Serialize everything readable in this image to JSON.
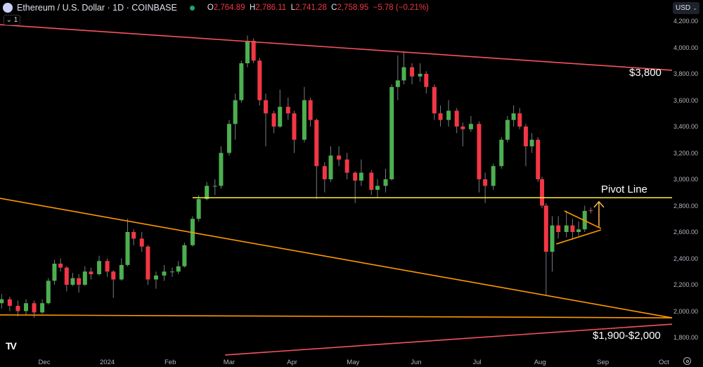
{
  "header": {
    "title": "Ethereum / U.S. Dollar · 1D · COINBASE",
    "open_label": "O",
    "open": "2,764.89",
    "high_label": "H",
    "high": "2,786.11",
    "low_label": "L",
    "low": "2,741.28",
    "close_label": "C",
    "close": "2,758.95",
    "change": "−5.78 (−0.21%)",
    "collapse_label": "1",
    "currency": "USD"
  },
  "colors": {
    "up": "#4caf50",
    "down": "#f23645",
    "wick": "#787b86",
    "resistance": "#f7525f",
    "pivot": "#ffeb3b",
    "support": "#ff9800",
    "arrow": "#ffb74d",
    "background": "#000000"
  },
  "icons": {
    "logo": "ethereum-icon",
    "status": "market-open-dot",
    "settings": "gear-icon",
    "collapse": "chevron-down-icon",
    "brand": "tradingview-logo"
  },
  "chart_data": {
    "type": "candlestick",
    "ylim": [
      1760,
      4240
    ],
    "xlim": [
      "2023-11-09",
      "2024-10-10"
    ],
    "price_ticks": [
      "4,200.00",
      "4,000.00",
      "3,800.00",
      "3,600.00",
      "3,400.00",
      "3,200.00",
      "3,000.00",
      "2,800.00",
      "2,600.00",
      "2,400.00",
      "2,200.00",
      "2,000.00",
      "1,800.00"
    ],
    "time_ticks": [
      {
        "label": "Dec",
        "date": "2023-12-01"
      },
      {
        "label": "2024",
        "date": "2024-01-01"
      },
      {
        "label": "Feb",
        "date": "2024-02-01"
      },
      {
        "label": "Mar",
        "date": "2024-03-01"
      },
      {
        "label": "Apr",
        "date": "2024-04-01"
      },
      {
        "label": "May",
        "date": "2024-05-01"
      },
      {
        "label": "Jun",
        "date": "2024-06-01"
      },
      {
        "label": "Jul",
        "date": "2024-07-01"
      },
      {
        "label": "Aug",
        "date": "2024-08-01"
      },
      {
        "label": "Sep",
        "date": "2024-09-01"
      },
      {
        "label": "Oct",
        "date": "2024-10-01"
      }
    ],
    "candles": [
      [
        "2023-11-10",
        2060,
        2130,
        2020,
        2090
      ],
      [
        "2023-11-14",
        2090,
        2110,
        2000,
        2040
      ],
      [
        "2023-11-18",
        2040,
        2080,
        1960,
        2000
      ],
      [
        "2023-11-22",
        2000,
        2090,
        1970,
        2060
      ],
      [
        "2023-11-26",
        2060,
        2080,
        1950,
        1990
      ],
      [
        "2023-11-30",
        1990,
        2090,
        1980,
        2060
      ],
      [
        "2023-12-03",
        2060,
        2250,
        2050,
        2230
      ],
      [
        "2023-12-06",
        2230,
        2390,
        2200,
        2360
      ],
      [
        "2023-12-09",
        2360,
        2400,
        2300,
        2330
      ],
      [
        "2023-12-12",
        2330,
        2340,
        2150,
        2200
      ],
      [
        "2023-12-15",
        2200,
        2290,
        2190,
        2250
      ],
      [
        "2023-12-18",
        2250,
        2280,
        2140,
        2200
      ],
      [
        "2023-12-21",
        2200,
        2340,
        2190,
        2300
      ],
      [
        "2023-12-24",
        2300,
        2330,
        2240,
        2280
      ],
      [
        "2023-12-28",
        2280,
        2420,
        2270,
        2380
      ],
      [
        "2024-01-01",
        2380,
        2400,
        2260,
        2300
      ],
      [
        "2024-01-04",
        2300,
        2310,
        2100,
        2240
      ],
      [
        "2024-01-08",
        2240,
        2400,
        2230,
        2350
      ],
      [
        "2024-01-11",
        2350,
        2700,
        2340,
        2600
      ],
      [
        "2024-01-14",
        2600,
        2620,
        2500,
        2550
      ],
      [
        "2024-01-18",
        2550,
        2600,
        2450,
        2490
      ],
      [
        "2024-01-21",
        2490,
        2500,
        2200,
        2240
      ],
      [
        "2024-01-25",
        2240,
        2300,
        2170,
        2270
      ],
      [
        "2024-01-29",
        2270,
        2350,
        2230,
        2300
      ],
      [
        "2024-02-02",
        2300,
        2330,
        2260,
        2300
      ],
      [
        "2024-02-05",
        2300,
        2380,
        2280,
        2340
      ],
      [
        "2024-02-08",
        2340,
        2520,
        2330,
        2500
      ],
      [
        "2024-02-12",
        2500,
        2720,
        2490,
        2700
      ],
      [
        "2024-02-15",
        2700,
        2880,
        2680,
        2850
      ],
      [
        "2024-02-19",
        2850,
        2980,
        2840,
        2950
      ],
      [
        "2024-02-23",
        2950,
        3000,
        2880,
        2950
      ],
      [
        "2024-02-26",
        2950,
        3250,
        2930,
        3200
      ],
      [
        "2024-03-01",
        3200,
        3450,
        3180,
        3420
      ],
      [
        "2024-03-04",
        3420,
        3650,
        3300,
        3600
      ],
      [
        "2024-03-07",
        3600,
        3900,
        3580,
        3880
      ],
      [
        "2024-03-10",
        3880,
        4090,
        3850,
        4050
      ],
      [
        "2024-03-13",
        4050,
        4070,
        3880,
        3900
      ],
      [
        "2024-03-16",
        3900,
        3920,
        3560,
        3600
      ],
      [
        "2024-03-19",
        3600,
        3650,
        3250,
        3500
      ],
      [
        "2024-03-23",
        3500,
        3520,
        3350,
        3400
      ],
      [
        "2024-03-26",
        3400,
        3680,
        3390,
        3550
      ],
      [
        "2024-03-30",
        3550,
        3620,
        3450,
        3500
      ],
      [
        "2024-04-02",
        3500,
        3520,
        3200,
        3300
      ],
      [
        "2024-04-07",
        3300,
        3700,
        3280,
        3600
      ],
      [
        "2024-04-10",
        3600,
        3620,
        3400,
        3450
      ],
      [
        "2024-04-13",
        3450,
        3460,
        2850,
        3100
      ],
      [
        "2024-04-17",
        3100,
        3130,
        2900,
        3000
      ],
      [
        "2024-04-20",
        3000,
        3250,
        2980,
        3180
      ],
      [
        "2024-04-24",
        3180,
        3250,
        3100,
        3150
      ],
      [
        "2024-04-28",
        3150,
        3200,
        3000,
        3050
      ],
      [
        "2024-05-02",
        3050,
        3060,
        2820,
        2990
      ],
      [
        "2024-05-05",
        2990,
        3150,
        2950,
        3050
      ],
      [
        "2024-05-10",
        3050,
        3070,
        2880,
        2920
      ],
      [
        "2024-05-13",
        2920,
        3000,
        2860,
        2950
      ],
      [
        "2024-05-17",
        2950,
        3080,
        2900,
        3000
      ],
      [
        "2024-05-20",
        3000,
        3720,
        2990,
        3700
      ],
      [
        "2024-05-23",
        3700,
        3940,
        3600,
        3750
      ],
      [
        "2024-05-26",
        3750,
        3970,
        3720,
        3850
      ],
      [
        "2024-05-30",
        3850,
        3880,
        3720,
        3780
      ],
      [
        "2024-06-03",
        3780,
        3880,
        3740,
        3800
      ],
      [
        "2024-06-06",
        3800,
        3820,
        3650,
        3700
      ],
      [
        "2024-06-10",
        3700,
        3720,
        3450,
        3500
      ],
      [
        "2024-06-13",
        3500,
        3560,
        3400,
        3450
      ],
      [
        "2024-06-17",
        3450,
        3600,
        3400,
        3520
      ],
      [
        "2024-06-21",
        3520,
        3540,
        3350,
        3400
      ],
      [
        "2024-06-24",
        3400,
        3430,
        3250,
        3380
      ],
      [
        "2024-06-28",
        3380,
        3480,
        3360,
        3420
      ],
      [
        "2024-07-02",
        3420,
        3440,
        2900,
        3000
      ],
      [
        "2024-07-05",
        3000,
        3050,
        2820,
        2950
      ],
      [
        "2024-07-09",
        2950,
        3120,
        2920,
        3100
      ],
      [
        "2024-07-13",
        3100,
        3320,
        3080,
        3300
      ],
      [
        "2024-07-16",
        3300,
        3480,
        3280,
        3450
      ],
      [
        "2024-07-19",
        3450,
        3560,
        3400,
        3500
      ],
      [
        "2024-07-22",
        3500,
        3540,
        3380,
        3400
      ],
      [
        "2024-07-25",
        3400,
        3420,
        3100,
        3250
      ],
      [
        "2024-07-28",
        3250,
        3350,
        3200,
        3300
      ],
      [
        "2024-07-31",
        3300,
        3320,
        2980,
        3000
      ],
      [
        "2024-08-02",
        3000,
        3020,
        2780,
        2800
      ],
      [
        "2024-08-04",
        2800,
        2820,
        2120,
        2450
      ],
      [
        "2024-08-07",
        2450,
        2720,
        2300,
        2650
      ],
      [
        "2024-08-10",
        2650,
        2720,
        2550,
        2600
      ],
      [
        "2024-08-14",
        2600,
        2760,
        2560,
        2650
      ],
      [
        "2024-08-17",
        2650,
        2700,
        2540,
        2600
      ],
      [
        "2024-08-20",
        2600,
        2680,
        2570,
        2620
      ],
      [
        "2024-08-23",
        2620,
        2800,
        2600,
        2760
      ],
      [
        "2024-08-26",
        2764.89,
        2786.11,
        2741.28,
        2758.95
      ]
    ],
    "lines": [
      {
        "kind": "resistance",
        "from": [
          "2023-11-09",
          4173
        ],
        "to": [
          "2024-10-05",
          3827
        ]
      },
      {
        "kind": "pivot",
        "from": [
          "2024-02-12",
          2860
        ],
        "to": [
          "2024-10-05",
          2860
        ]
      },
      {
        "kind": "support",
        "from": [
          "2023-11-09",
          2856
        ],
        "to": [
          "2024-10-05",
          1949
        ]
      },
      {
        "kind": "support",
        "from": [
          "2023-11-09",
          1971
        ],
        "to": [
          "2024-10-05",
          1949
        ]
      },
      {
        "kind": "resistance",
        "from": [
          "2024-02-28",
          1667
        ],
        "to": [
          "2024-10-05",
          1901
        ]
      },
      {
        "kind": "support",
        "from": [
          "2024-08-13",
          2760
        ],
        "to": [
          "2024-08-31",
          2627
        ]
      },
      {
        "kind": "support",
        "from": [
          "2024-08-09",
          2509
        ],
        "to": [
          "2024-08-31",
          2616
        ]
      }
    ],
    "arrow": {
      "date": "2024-08-30",
      "from": 2640,
      "to": 2830
    },
    "annotations": [
      {
        "id": "resistance-label",
        "text": "$3,800"
      },
      {
        "id": "pivot-label",
        "text": "Pivot Line"
      },
      {
        "id": "support-label",
        "text": "$1,900-$2,000"
      }
    ]
  }
}
